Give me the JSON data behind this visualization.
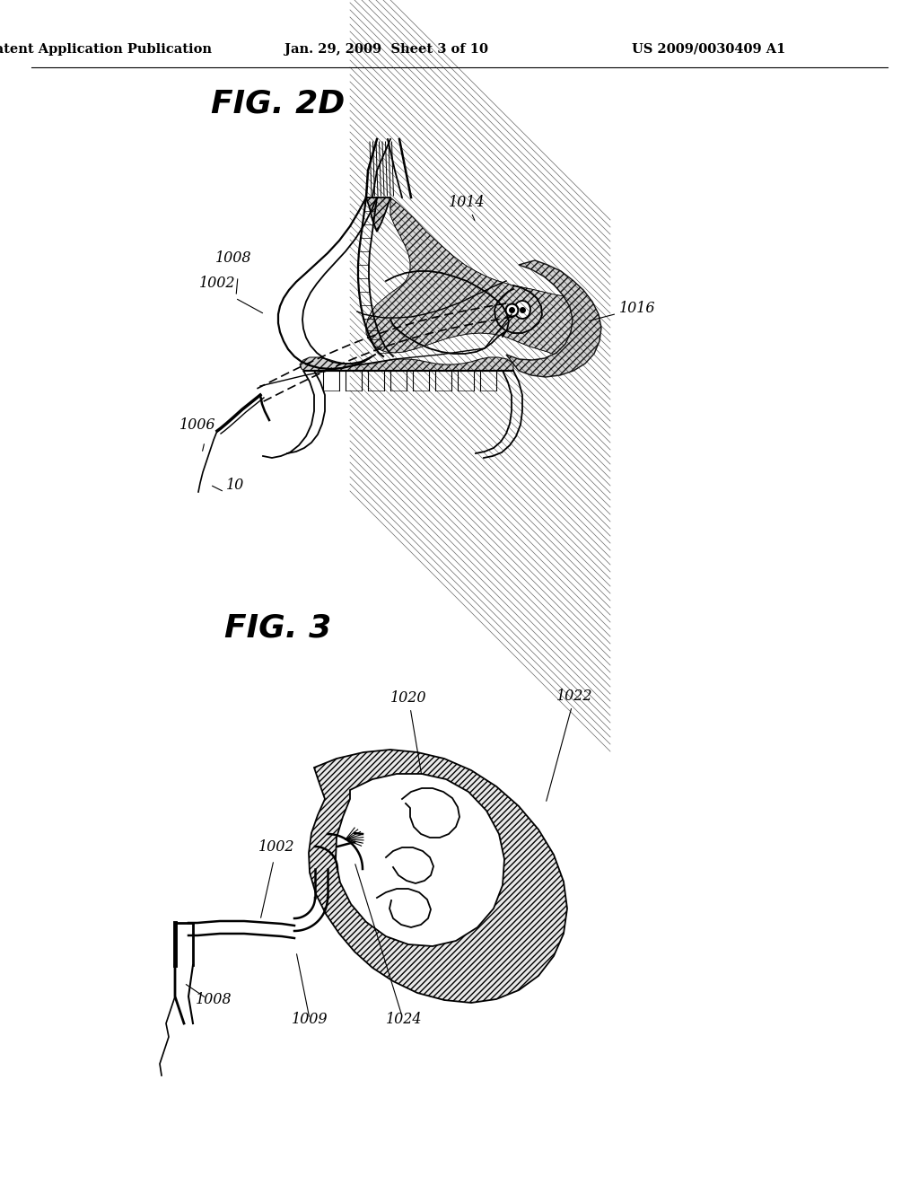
{
  "background_color": "#ffffff",
  "header_left": "Patent Application Publication",
  "header_center": "Jan. 29, 2009  Sheet 3 of 10",
  "header_right": "US 2009/0030409 A1",
  "fig2d_title": "FIG. 2D",
  "fig3_title": "FIG. 3",
  "header_fontsize": 10.5,
  "fig_title_fontsize": 26,
  "label_fontsize": 11.5
}
